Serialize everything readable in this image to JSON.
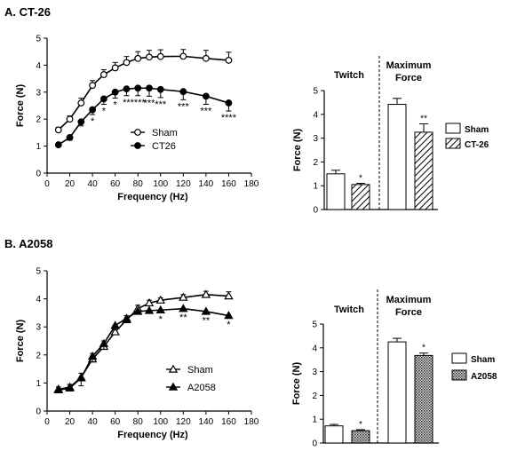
{
  "panels": [
    {
      "title": "A.  CT-26"
    },
    {
      "title": "B.  A2058"
    }
  ],
  "chart_data": [
    {
      "id": "A-freq",
      "type": "line",
      "xlabel": "Frequency (Hz)",
      "ylabel": "Force (N)",
      "xlim": [
        0,
        180
      ],
      "ylim": [
        0,
        5
      ],
      "xticks": [
        0,
        20,
        40,
        60,
        80,
        100,
        120,
        140,
        160,
        180
      ],
      "yticks": [
        0,
        1,
        2,
        3,
        4,
        5
      ],
      "legend_position": "center-right",
      "series": [
        {
          "name": "Sham",
          "marker": "open-circle",
          "x": [
            10,
            20,
            30,
            40,
            50,
            60,
            70,
            80,
            90,
            100,
            120,
            140,
            160
          ],
          "y": [
            1.6,
            2.0,
            2.6,
            3.25,
            3.65,
            3.9,
            4.1,
            4.25,
            4.3,
            4.32,
            4.33,
            4.25,
            4.18
          ],
          "err": [
            0.1,
            0.12,
            0.18,
            0.18,
            0.18,
            0.2,
            0.22,
            0.25,
            0.25,
            0.25,
            0.25,
            0.3,
            0.3
          ]
        },
        {
          "name": "CT26",
          "marker": "filled-circle",
          "x": [
            10,
            20,
            30,
            40,
            50,
            60,
            70,
            80,
            90,
            100,
            120,
            140,
            160
          ],
          "y": [
            1.05,
            1.32,
            1.9,
            2.35,
            2.75,
            3.0,
            3.12,
            3.15,
            3.15,
            3.1,
            3.02,
            2.85,
            2.6
          ],
          "err": [
            0.07,
            0.1,
            0.15,
            0.18,
            0.2,
            0.22,
            0.25,
            0.28,
            0.3,
            0.3,
            0.3,
            0.3,
            0.3
          ]
        }
      ],
      "annotations": [
        {
          "x": 40,
          "text": "*"
        },
        {
          "x": 50,
          "text": "*"
        },
        {
          "x": 60,
          "text": "*"
        },
        {
          "x": 70,
          "text": "**"
        },
        {
          "x": 80,
          "text": "****"
        },
        {
          "x": 90,
          "text": "***"
        },
        {
          "x": 100,
          "text": "***"
        },
        {
          "x": 120,
          "text": "***"
        },
        {
          "x": 140,
          "text": "***"
        },
        {
          "x": 160,
          "text": "****"
        }
      ]
    },
    {
      "id": "A-bar",
      "type": "bar",
      "ylabel": "Force (N)",
      "ylim": [
        0,
        5
      ],
      "yticks": [
        0,
        1,
        2,
        3,
        4,
        5
      ],
      "groups": [
        "Twitch",
        "Maximum\nForce"
      ],
      "legend_position": "right",
      "series": [
        {
          "name": "Sham",
          "fill": "white",
          "values": [
            1.5,
            4.42
          ],
          "err": [
            0.15,
            0.25
          ]
        },
        {
          "name": "CT-26",
          "fill": "hatched",
          "values": [
            1.05,
            3.25
          ],
          "err": [
            0.05,
            0.35
          ]
        }
      ],
      "annotations": [
        {
          "group": 0,
          "series": 1,
          "text": "*"
        },
        {
          "group": 1,
          "series": 1,
          "text": "**"
        }
      ]
    },
    {
      "id": "B-freq",
      "type": "line",
      "xlabel": "Frequency (Hz)",
      "ylabel": "Force (N)",
      "xlim": [
        0,
        180
      ],
      "ylim": [
        0,
        5
      ],
      "xticks": [
        0,
        20,
        40,
        60,
        80,
        100,
        120,
        140,
        160,
        180
      ],
      "yticks": [
        0,
        1,
        2,
        3,
        4,
        5
      ],
      "legend_position": "bottom-right",
      "series": [
        {
          "name": "Sham",
          "marker": "open-triangle",
          "x": [
            10,
            20,
            30,
            40,
            50,
            60,
            70,
            80,
            90,
            100,
            120,
            140,
            160
          ],
          "y": [
            0.78,
            0.85,
            1.2,
            1.85,
            2.3,
            2.82,
            3.25,
            3.65,
            3.85,
            3.95,
            4.05,
            4.15,
            4.1
          ],
          "err": [
            0.08,
            0.1,
            0.15,
            0.2,
            0.2,
            0.2,
            0.15,
            0.12,
            0.1,
            0.08,
            0.1,
            0.12,
            0.15
          ]
        },
        {
          "name": "A2058",
          "marker": "filled-triangle",
          "x": [
            10,
            20,
            30,
            40,
            50,
            60,
            70,
            80,
            90,
            100,
            120,
            140,
            160
          ],
          "y": [
            0.75,
            0.82,
            1.18,
            1.95,
            2.4,
            3.05,
            3.3,
            3.55,
            3.58,
            3.6,
            3.65,
            3.55,
            3.4
          ],
          "err": [
            0.08,
            0.1,
            0.28,
            0.2,
            0.2,
            0.15,
            0.12,
            0.1,
            0.08,
            0.08,
            0.08,
            0.08,
            0.08
          ]
        }
      ],
      "annotations": [
        {
          "x": 100,
          "text": "*"
        },
        {
          "x": 120,
          "text": "**"
        },
        {
          "x": 140,
          "text": "**"
        },
        {
          "x": 160,
          "text": "*"
        }
      ]
    },
    {
      "id": "B-bar",
      "type": "bar",
      "ylabel": "Force (N)",
      "ylim": [
        0,
        5
      ],
      "yticks": [
        0,
        1,
        2,
        3,
        4,
        5
      ],
      "groups": [
        "Twitch",
        "Maximum\nForce"
      ],
      "legend_position": "right",
      "series": [
        {
          "name": "Sham",
          "fill": "white",
          "values": [
            0.72,
            4.25
          ],
          "err": [
            0.06,
            0.15
          ]
        },
        {
          "name": "A2058",
          "fill": "dotted",
          "values": [
            0.52,
            3.68
          ],
          "err": [
            0.04,
            0.1
          ]
        }
      ],
      "annotations": [
        {
          "group": 0,
          "series": 1,
          "text": "*"
        },
        {
          "group": 1,
          "series": 1,
          "text": "*"
        }
      ]
    }
  ]
}
